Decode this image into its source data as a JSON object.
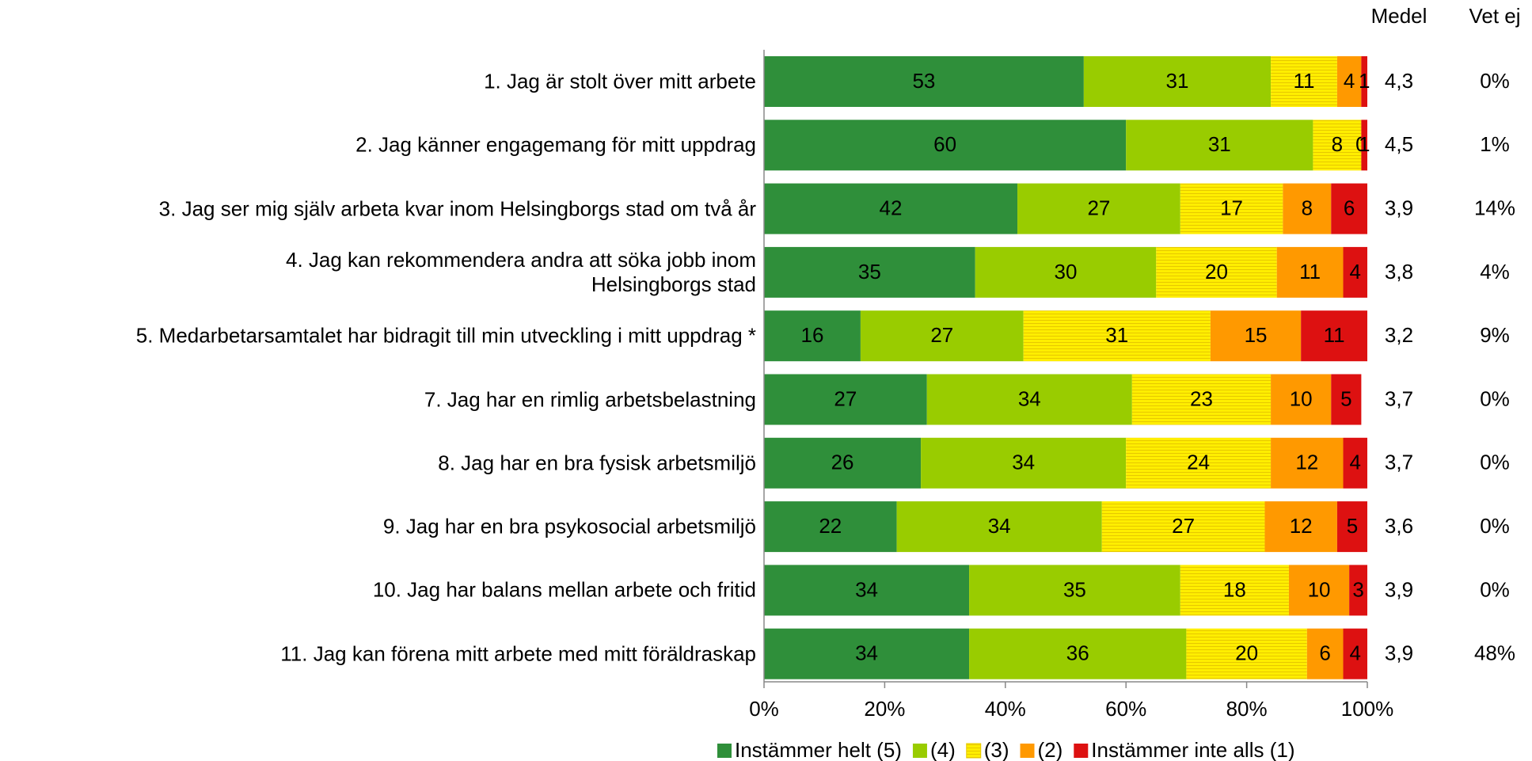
{
  "chart_data": {
    "type": "stacked_barh",
    "categories": [
      "1. Jag är stolt över mitt arbete",
      "2. Jag känner engagemang för mitt uppdrag",
      "3. Jag ser mig själv arbeta kvar inom Helsingborgs stad om två år",
      "4. Jag kan rekommendera andra att söka jobb inom Helsingborgs stad",
      "5. Medarbetarsamtalet har bidragit till min utveckling i mitt uppdrag *",
      "7. Jag har en rimlig arbetsbelastning",
      "8. Jag har en bra fysisk arbetsmiljö",
      "9. Jag har en bra psykosocial arbetsmiljö",
      "10. Jag har balans mellan arbete och fritid",
      "11. Jag kan förena mitt arbete med mitt föräldraskap"
    ],
    "series": [
      {
        "name": "Instämmer helt (5)",
        "color": "#2f8f3a",
        "values": [
          53,
          60,
          42,
          35,
          16,
          27,
          26,
          22,
          34,
          34
        ]
      },
      {
        "name": "(4)",
        "color": "#99cc00",
        "values": [
          31,
          31,
          27,
          30,
          27,
          34,
          34,
          34,
          35,
          36
        ]
      },
      {
        "name": "(3)",
        "color": "#ffee00",
        "values": [
          11,
          8,
          17,
          20,
          31,
          23,
          24,
          27,
          18,
          20
        ]
      },
      {
        "name": "(2)",
        "color": "#ff9900",
        "values": [
          4,
          0,
          8,
          11,
          15,
          10,
          12,
          12,
          10,
          6
        ]
      },
      {
        "name": "Instämmer inte alls (1)",
        "color": "#dd1111",
        "values": [
          1,
          1,
          6,
          4,
          11,
          5,
          4,
          5,
          3,
          4
        ]
      }
    ],
    "xlim": [
      0,
      100
    ],
    "xticks": [
      {
        "value": 0,
        "label": "0%"
      },
      {
        "value": 20,
        "label": "20%"
      },
      {
        "value": 40,
        "label": "40%"
      },
      {
        "value": 60,
        "label": "60%"
      },
      {
        "value": 80,
        "label": "80%"
      },
      {
        "value": 100,
        "label": "100%"
      }
    ],
    "medel": {
      "header": "Medel",
      "values": [
        "4,3",
        "4,5",
        "3,9",
        "3,8",
        "3,2",
        "3,7",
        "3,7",
        "3,6",
        "3,9",
        "3,9"
      ]
    },
    "vet_ej": {
      "header": "Vet ej",
      "values": [
        "0%",
        "1%",
        "14%",
        "4%",
        "9%",
        "0%",
        "0%",
        "0%",
        "0%",
        "48%"
      ]
    },
    "legend": "bottom"
  }
}
